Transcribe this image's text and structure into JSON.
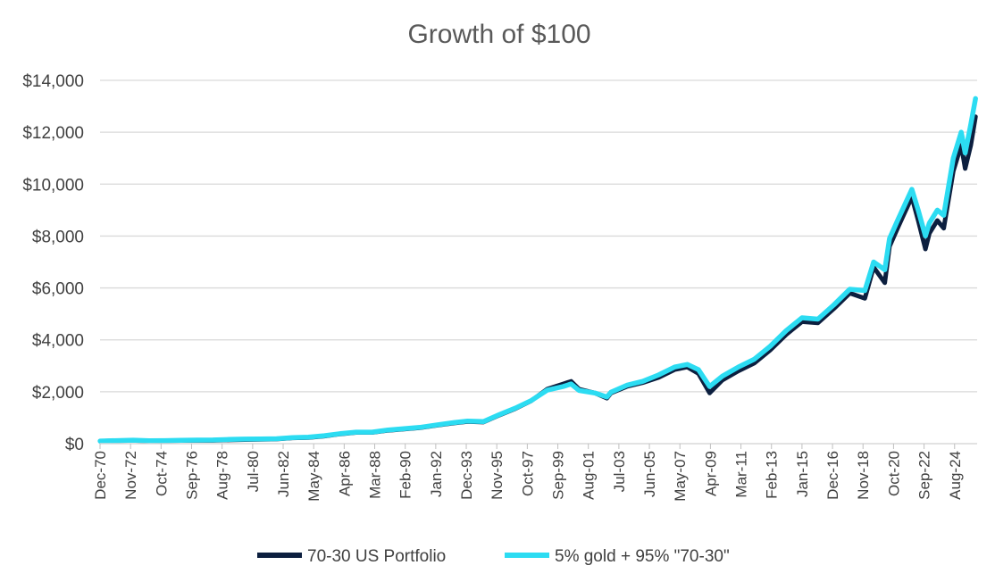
{
  "chart_data": {
    "type": "line",
    "title": "Growth of $100",
    "xlabel": "",
    "ylabel": "",
    "ylim": [
      0,
      14000
    ],
    "yticks": [
      0,
      2000,
      4000,
      6000,
      8000,
      10000,
      12000,
      14000
    ],
    "ytick_labels": [
      "$0",
      "$2,000",
      "$4,000",
      "$6,000",
      "$8,000",
      "$10,000",
      "$12,000",
      "$14,000"
    ],
    "xtick_labels": [
      "Dec-70",
      "Nov-72",
      "Oct-74",
      "Sep-76",
      "Aug-78",
      "Jul-80",
      "Jun-82",
      "May-84",
      "Apr-86",
      "Mar-88",
      "Feb-90",
      "Jan-92",
      "Dec-93",
      "Nov-95",
      "Oct-97",
      "Sep-99",
      "Aug-01",
      "Jul-03",
      "Jun-05",
      "May-07",
      "Apr-09",
      "Mar-11",
      "Feb-13",
      "Jan-15",
      "Dec-16",
      "Nov-18",
      "Oct-20",
      "Sep-22",
      "Aug-24"
    ],
    "x_range": [
      1970.917,
      2026.0
    ],
    "legend_position": "bottom",
    "grid": true,
    "series": [
      {
        "name": "70-30 US Portfolio",
        "color": "#0c1f3f",
        "x": [
          1970.92,
          1972.0,
          1973.0,
          1974.0,
          1975.0,
          1976.0,
          1977.0,
          1978.0,
          1979.0,
          1980.0,
          1981.0,
          1982.0,
          1983.0,
          1984.0,
          1985.0,
          1986.0,
          1987.0,
          1988.0,
          1989.0,
          1990.0,
          1991.0,
          1992.0,
          1993.0,
          1994.0,
          1995.0,
          1996.0,
          1997.0,
          1998.0,
          1999.0,
          2000.0,
          2000.5,
          2001.0,
          2002.0,
          2002.75,
          2003.0,
          2004.0,
          2005.0,
          2006.0,
          2007.0,
          2007.8,
          2008.5,
          2009.2,
          2010.0,
          2011.0,
          2012.0,
          2013.0,
          2014.0,
          2015.0,
          2016.0,
          2017.0,
          2018.0,
          2018.95,
          2019.5,
          2020.2,
          2020.5,
          2021.0,
          2021.9,
          2022.3,
          2022.75,
          2023.0,
          2023.5,
          2023.9,
          2024.5,
          2025.0,
          2025.25,
          2025.6,
          2025.9
        ],
        "values": [
          100,
          115,
          125,
          95,
          105,
          120,
          125,
          125,
          140,
          155,
          165,
          175,
          220,
          235,
          290,
          370,
          430,
          430,
          510,
          560,
          610,
          700,
          780,
          850,
          830,
          1100,
          1350,
          1650,
          2100,
          2300,
          2400,
          2100,
          1950,
          1750,
          1950,
          2200,
          2350,
          2550,
          2850,
          2950,
          2700,
          1950,
          2450,
          2800,
          3100,
          3600,
          4200,
          4700,
          4650,
          5200,
          5800,
          5600,
          6800,
          6200,
          7600,
          8300,
          9500,
          8600,
          7500,
          8100,
          8600,
          8300,
          10500,
          11500,
          10600,
          11500,
          12600
        ]
      },
      {
        "name": "5% gold + 95% \"70-30\"",
        "color": "#2cdcf2",
        "x": [
          1970.92,
          1972.0,
          1973.0,
          1974.0,
          1975.0,
          1976.0,
          1977.0,
          1978.0,
          1979.0,
          1980.0,
          1981.0,
          1982.0,
          1983.0,
          1984.0,
          1985.0,
          1986.0,
          1987.0,
          1988.0,
          1989.0,
          1990.0,
          1991.0,
          1992.0,
          1993.0,
          1994.0,
          1995.0,
          1996.0,
          1997.0,
          1998.0,
          1999.0,
          2000.0,
          2000.5,
          2001.0,
          2002.0,
          2002.75,
          2003.0,
          2004.0,
          2005.0,
          2006.0,
          2007.0,
          2007.8,
          2008.5,
          2009.2,
          2010.0,
          2011.0,
          2012.0,
          2013.0,
          2014.0,
          2015.0,
          2016.0,
          2017.0,
          2018.0,
          2018.95,
          2019.5,
          2020.2,
          2020.5,
          2021.0,
          2021.9,
          2022.3,
          2022.75,
          2023.0,
          2023.5,
          2023.9,
          2024.5,
          2025.0,
          2025.25,
          2025.6,
          2025.9
        ],
        "values": [
          100,
          118,
          135,
          110,
          118,
          130,
          138,
          142,
          160,
          175,
          182,
          190,
          235,
          250,
          305,
          385,
          445,
          445,
          525,
          575,
          625,
          715,
          800,
          870,
          850,
          1120,
          1370,
          1660,
          2060,
          2200,
          2300,
          2050,
          1950,
          1800,
          1980,
          2250,
          2400,
          2650,
          2950,
          3050,
          2850,
          2200,
          2600,
          2950,
          3250,
          3750,
          4350,
          4850,
          4800,
          5350,
          5950,
          5900,
          7000,
          6700,
          7900,
          8600,
          9800,
          9000,
          8000,
          8500,
          9000,
          8800,
          11000,
          12000,
          11200,
          12300,
          13300
        ]
      }
    ]
  }
}
